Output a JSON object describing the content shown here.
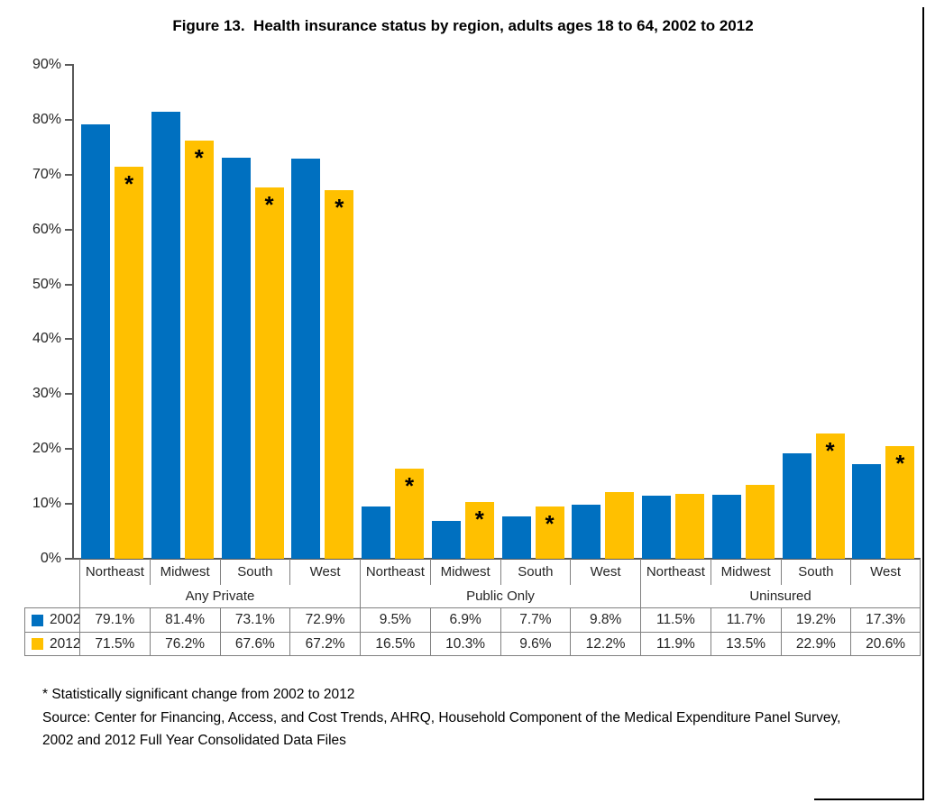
{
  "title": "Figure 13.  Health insurance status by region, adults ages 18 to 64, 2002 to 2012",
  "colors": {
    "series_2002": "#0070C0",
    "series_2012": "#FFC000",
    "axis": "#595959",
    "table_border": "#808080",
    "text": "#262626"
  },
  "chart_data": {
    "type": "bar",
    "title": "Figure 13.  Health insurance status by region, adults ages 18 to 64, 2002 to 2012",
    "xlabel": "",
    "ylabel": "",
    "y_axis": {
      "min": 0,
      "max": 90,
      "tick_step": 10,
      "tick_suffix": "%"
    },
    "grid": false,
    "legend_position": "table-left",
    "groups": [
      "Any Private",
      "Public Only",
      "Uninsured"
    ],
    "regions": [
      "Northeast",
      "Midwest",
      "South",
      "West"
    ],
    "series": [
      {
        "name": "2002",
        "color": "#0070C0",
        "values": [
          79.1,
          81.4,
          73.1,
          72.9,
          9.5,
          6.9,
          7.7,
          9.8,
          11.5,
          11.7,
          19.2,
          17.3
        ]
      },
      {
        "name": "2012",
        "color": "#FFC000",
        "values": [
          71.5,
          76.2,
          67.6,
          67.2,
          16.5,
          10.3,
          9.6,
          12.2,
          11.9,
          13.5,
          22.9,
          20.6
        ],
        "significant": [
          true,
          true,
          true,
          true,
          true,
          true,
          true,
          false,
          false,
          false,
          true,
          true
        ]
      }
    ],
    "significance_marker": "*"
  },
  "table": {
    "group_headers": [
      "Any Private",
      "Public Only",
      "Uninsured"
    ],
    "region_headers": [
      "Northeast",
      "Midwest",
      "South",
      "West"
    ],
    "rows": [
      {
        "label": "2002",
        "swatch_color": "#0070C0",
        "cells": [
          "79.1%",
          "81.4%",
          "73.1%",
          "72.9%",
          "9.5%",
          "6.9%",
          "7.7%",
          "9.8%",
          "11.5%",
          "11.7%",
          "19.2%",
          "17.3%"
        ]
      },
      {
        "label": "2012",
        "swatch_color": "#FFC000",
        "cells": [
          "71.5%",
          "76.2%",
          "67.6%",
          "67.2%",
          "16.5%",
          "10.3%",
          "9.6%",
          "12.2%",
          "11.9%",
          "13.5%",
          "22.9%",
          "20.6%"
        ]
      }
    ]
  },
  "footnotes": {
    "line1": "* Statistically significant change from 2002 to 2012",
    "line2": "Source: Center for Financing, Access, and Cost Trends, AHRQ, Household Component of the Medical Expenditure Panel Survey,",
    "line3": "2002 and 2012 Full Year Consolidated Data Files"
  }
}
